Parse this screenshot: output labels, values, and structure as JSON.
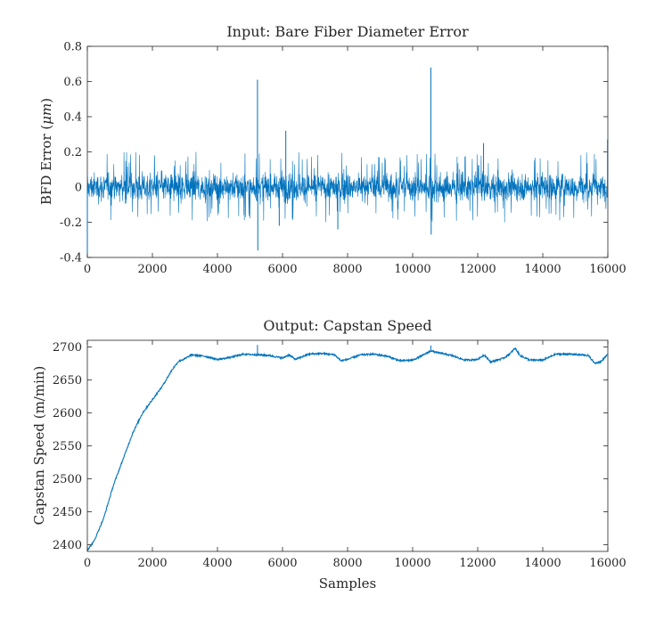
{
  "figure": {
    "background": "#ffffff",
    "line_color": "#0072bd",
    "axis_color": "#262626"
  },
  "chart_data": [
    {
      "type": "line",
      "title": "Input: Bare Fiber Diameter Error",
      "xlabel": "",
      "ylabel_text": "BFD Error (",
      "ylabel_math": "μm",
      "ylabel_end": ")",
      "xlim": [
        0,
        16000
      ],
      "ylim": [
        -0.4,
        0.8
      ],
      "xticks": [
        0,
        2000,
        4000,
        6000,
        8000,
        10000,
        12000,
        14000,
        16000
      ],
      "yticks": [
        -0.4,
        -0.2,
        0,
        0.2,
        0.4,
        0.6,
        0.8
      ],
      "xtick_labels": [
        "0",
        "2000",
        "4000",
        "6000",
        "8000",
        "10000",
        "12000",
        "14000",
        "16000"
      ],
      "ytick_labels": [
        "-0.4",
        "-0.2",
        "0",
        "0.2",
        "0.4",
        "0.6",
        "0.8"
      ],
      "grid": false,
      "series": [
        {
          "signal": "noise",
          "n_samples": 16000,
          "mean": 0.0,
          "band": 0.1,
          "typical_peak": 0.2,
          "spikes": [
            {
              "x": 0,
              "y": -0.38
            },
            {
              "x": 5230,
              "y": 0.61
            },
            {
              "x": 5240,
              "y": -0.36
            },
            {
              "x": 6100,
              "y": 0.32
            },
            {
              "x": 5900,
              "y": -0.22
            },
            {
              "x": 7700,
              "y": -0.24
            },
            {
              "x": 10560,
              "y": 0.68
            },
            {
              "x": 10570,
              "y": -0.27
            },
            {
              "x": 12180,
              "y": 0.25
            },
            {
              "x": 15990,
              "y": 0.27
            }
          ]
        }
      ]
    },
    {
      "type": "line",
      "title": "Output: Capstan Speed",
      "xlabel": "Samples",
      "ylabel": "Capstan Speed (m/min)",
      "xlim": [
        0,
        16000
      ],
      "ylim": [
        2390,
        2710
      ],
      "xticks": [
        0,
        2000,
        4000,
        6000,
        8000,
        10000,
        12000,
        14000,
        16000
      ],
      "yticks": [
        2400,
        2450,
        2500,
        2550,
        2600,
        2650,
        2700
      ],
      "xtick_labels": [
        "0",
        "2000",
        "4000",
        "6000",
        "8000",
        "10000",
        "12000",
        "14000",
        "16000"
      ],
      "ytick_labels": [
        "2400",
        "2450",
        "2500",
        "2550",
        "2600",
        "2650",
        "2700"
      ],
      "grid": false,
      "series": [
        {
          "x": [
            0,
            200,
            500,
            800,
            1100,
            1400,
            1700,
            2000,
            2300,
            2600,
            2800,
            3000,
            3200,
            3600,
            4000,
            4400,
            4800,
            5200,
            5600,
            6000,
            6200,
            6400,
            6800,
            7200,
            7600,
            7800,
            8000,
            8400,
            8800,
            9200,
            9600,
            10000,
            10300,
            10560,
            10800,
            11200,
            11600,
            12000,
            12200,
            12400,
            12800,
            13000,
            13150,
            13300,
            13600,
            14000,
            14400,
            14800,
            15200,
            15400,
            15600,
            15800,
            16000
          ],
          "y": [
            2392,
            2405,
            2440,
            2490,
            2530,
            2570,
            2600,
            2620,
            2640,
            2665,
            2678,
            2682,
            2688,
            2686,
            2681,
            2684,
            2689,
            2688,
            2687,
            2683,
            2688,
            2681,
            2689,
            2690,
            2688,
            2679,
            2681,
            2688,
            2689,
            2686,
            2679,
            2680,
            2687,
            2694,
            2691,
            2687,
            2680,
            2681,
            2688,
            2677,
            2683,
            2690,
            2698,
            2687,
            2680,
            2680,
            2689,
            2689,
            2688,
            2687,
            2675,
            2678,
            2689
          ],
          "jitter": 1.2,
          "spikes": [
            {
              "x": 5230,
              "y": 2703
            },
            {
              "x": 10560,
              "y": 2702
            }
          ]
        }
      ]
    }
  ]
}
